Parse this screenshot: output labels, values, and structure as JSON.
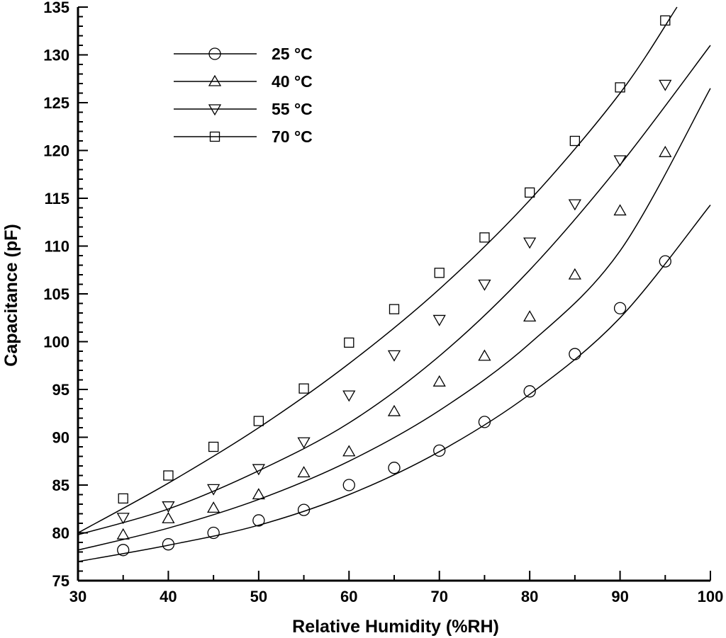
{
  "chart_data": {
    "type": "scatter",
    "xlabel": "Relative Humidity (%RH)",
    "ylabel": "Capacitance (pF)",
    "xlim": [
      30,
      100
    ],
    "ylim": [
      75,
      135
    ],
    "xticks": [
      30,
      40,
      50,
      60,
      70,
      80,
      90,
      100
    ],
    "yticks": [
      75,
      80,
      85,
      90,
      95,
      100,
      105,
      110,
      115,
      120,
      125,
      130,
      135
    ],
    "grid": false,
    "legend_position": "top-left",
    "x": [
      35,
      40,
      45,
      50,
      55,
      60,
      65,
      70,
      75,
      80,
      85,
      90,
      95
    ],
    "series": [
      {
        "name": "25 °C",
        "marker": "circle",
        "values": [
          78.2,
          78.8,
          80.0,
          81.3,
          82.4,
          85.0,
          86.8,
          88.6,
          91.6,
          94.8,
          98.7,
          103.5,
          108.4
        ],
        "fit_curve": [
          [
            30,
            77.0
          ],
          [
            40,
            78.7
          ],
          [
            50,
            80.8
          ],
          [
            60,
            84.0
          ],
          [
            70,
            88.5
          ],
          [
            80,
            94.5
          ],
          [
            90,
            102.5
          ],
          [
            100,
            114.3
          ]
        ]
      },
      {
        "name": "40 °C",
        "marker": "triangle-up",
        "values": [
          79.8,
          81.5,
          82.6,
          84.0,
          86.3,
          88.5,
          92.7,
          95.8,
          98.5,
          102.6,
          107.0,
          113.7,
          119.8
        ],
        "fit_curve": [
          [
            30,
            78.2
          ],
          [
            40,
            80.5
          ],
          [
            50,
            83.5
          ],
          [
            60,
            87.5
          ],
          [
            70,
            92.8
          ],
          [
            80,
            99.8
          ],
          [
            90,
            109.5
          ],
          [
            100,
            126.5
          ]
        ]
      },
      {
        "name": "55 °C",
        "marker": "triangle-down",
        "values": [
          81.6,
          82.8,
          84.6,
          86.7,
          89.5,
          94.4,
          98.6,
          102.3,
          106.0,
          110.4,
          114.4,
          119.0,
          126.9
        ],
        "fit_curve": [
          [
            30,
            79.8
          ],
          [
            40,
            82.5
          ],
          [
            50,
            86.5
          ],
          [
            60,
            91.5
          ],
          [
            70,
            98.5
          ],
          [
            80,
            107.5
          ],
          [
            90,
            118.5
          ],
          [
            100,
            131.0
          ]
        ]
      },
      {
        "name": "70 °C",
        "marker": "square",
        "values": [
          83.6,
          86.0,
          89.0,
          91.7,
          95.1,
          99.9,
          103.4,
          107.2,
          110.9,
          115.6,
          121.0,
          126.6,
          133.6
        ],
        "fit_curve": [
          [
            30,
            80.0
          ],
          [
            40,
            85.2
          ],
          [
            50,
            91.0
          ],
          [
            60,
            97.7
          ],
          [
            70,
            105.5
          ],
          [
            80,
            114.8
          ],
          [
            90,
            126.0
          ],
          [
            96.3,
            135.0
          ]
        ]
      }
    ]
  }
}
